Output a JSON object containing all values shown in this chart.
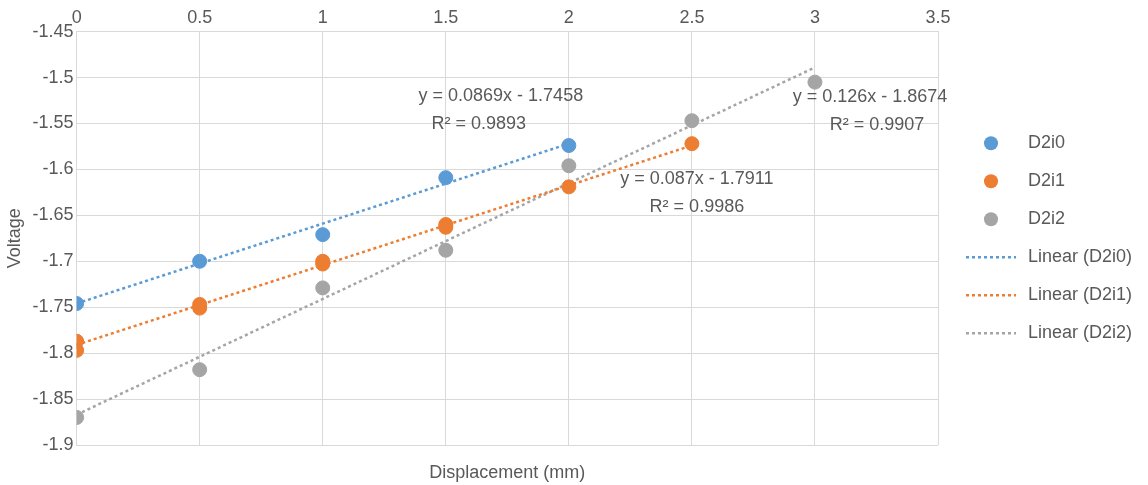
{
  "chart_data": {
    "type": "scatter",
    "xlabel": "Displacement (mm)",
    "ylabel": "Voltage",
    "xlim": [
      0,
      3.5
    ],
    "xticks": [
      0,
      0.5,
      1,
      1.5,
      2,
      2.5,
      3,
      3.5
    ],
    "ylim": [
      -1.9,
      -1.45
    ],
    "yticks": [
      -1.9,
      -1.85,
      -1.8,
      -1.75,
      -1.7,
      -1.65,
      -1.6,
      -1.55,
      -1.5,
      -1.45
    ],
    "grid": true,
    "legend": "right",
    "marker": "circle",
    "series": [
      {
        "name": "D2i0",
        "color": "#5b9bd5",
        "x": [
          0,
          0.5,
          1,
          1.5,
          2
        ],
        "values": [
          -1.746,
          -1.7,
          -1.671,
          -1.609,
          -1.574
        ]
      },
      {
        "name": "D2i1",
        "color": "#ed7d31",
        "x": [
          0,
          0,
          0.5,
          0.5,
          1,
          1,
          1.5,
          1.5,
          2,
          2.5
        ],
        "values": [
          -1.787,
          -1.797,
          -1.747,
          -1.751,
          -1.7,
          -1.703,
          -1.66,
          -1.663,
          -1.619,
          -1.572
        ]
      },
      {
        "name": "D2i2",
        "color": "#a5a5a5",
        "x": [
          0,
          0.5,
          1,
          1.5,
          2,
          2.5,
          3
        ],
        "values": [
          -1.87,
          -1.818,
          -1.729,
          -1.688,
          -1.596,
          -1.547,
          -1.505
        ]
      },
      {
        "name": "Linear (D2i0)",
        "type": "line",
        "line_style": "dotted",
        "color": "#5b9bd5",
        "x": [
          0,
          2
        ],
        "values": [
          -1.746,
          -1.572
        ],
        "marker": "none"
      },
      {
        "name": "Linear (D2i1)",
        "type": "line",
        "line_style": "dotted",
        "color": "#ed7d31",
        "x": [
          0,
          2.5
        ],
        "values": [
          -1.791,
          -1.574
        ],
        "marker": "none"
      },
      {
        "name": "Linear (D2i2)",
        "type": "line",
        "line_style": "dotted",
        "color": "#a5a5a5",
        "x": [
          0,
          3
        ],
        "values": [
          -1.867,
          -1.489
        ],
        "marker": "none"
      }
    ],
    "annotations": [
      "y = 0.0869x - 1.7458",
      "R² = 0.9893",
      "y = 0.087x - 1.7911",
      "R² = 0.9986",
      "y = 0.126x - 1.8674",
      "R² = 0.9907"
    ]
  }
}
